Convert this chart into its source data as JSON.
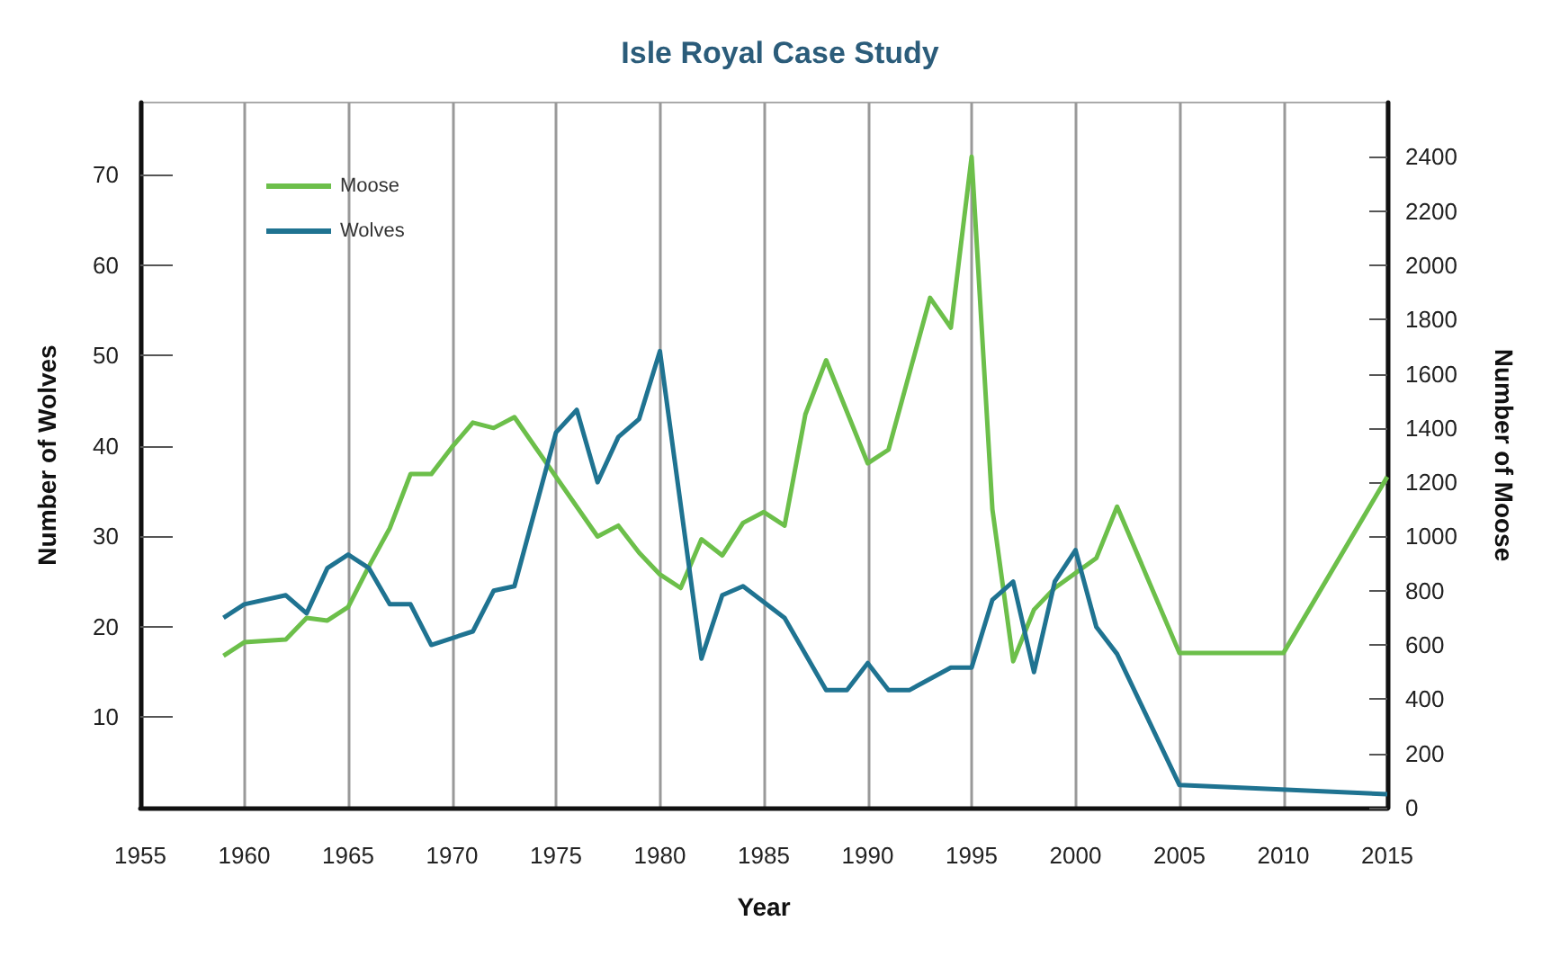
{
  "chart_data": {
    "type": "line",
    "title": "Isle Royal Case Study",
    "xlabel": "Year",
    "ylabel": "Number of Wolves",
    "y2label": "Number of Moose",
    "xlim": [
      1955,
      2015
    ],
    "xticks": [
      1955,
      1960,
      1965,
      1970,
      1975,
      1980,
      1985,
      1990,
      1995,
      2000,
      2005,
      2010,
      2015
    ],
    "ylim": [
      0,
      78
    ],
    "yticks": [
      10,
      20,
      30,
      40,
      50,
      60,
      70
    ],
    "y2lim": [
      0,
      2600
    ],
    "y2ticks": [
      0,
      200,
      400,
      600,
      800,
      1000,
      1200,
      1400,
      1600,
      1800,
      2000,
      2200,
      2400
    ],
    "grid": "x",
    "legend": "top left",
    "marker": "none",
    "line_style": "solid",
    "series": [
      {
        "name": "Moose",
        "color": "#6cbf4a",
        "axis": "y2",
        "x": [
          1959,
          1960,
          1962,
          1963,
          1964,
          1965,
          1966,
          1967,
          1968,
          1969,
          1970,
          1971,
          1972,
          1973,
          1974,
          1977,
          1978,
          1979,
          1980,
          1981,
          1982,
          1983,
          1984,
          1985,
          1986,
          1987,
          1988,
          1990,
          1991,
          1993,
          1994,
          1995,
          1996,
          1997,
          1998,
          1999,
          2001,
          2002,
          2005,
          2010,
          2015
        ],
        "values": [
          560,
          610,
          620,
          700,
          690,
          740,
          890,
          1030,
          1230,
          1230,
          1330,
          1420,
          1400,
          1440,
          1330,
          1000,
          1040,
          940,
          860,
          810,
          990,
          930,
          1050,
          1090,
          1040,
          1450,
          1650,
          1270,
          1320,
          1880,
          1770,
          2400,
          1100,
          540,
          730,
          810,
          920,
          1110,
          570,
          570,
          1220
        ]
      },
      {
        "name": "Wolves",
        "color": "#1f7391",
        "axis": "y",
        "x": [
          1959,
          1960,
          1962,
          1963,
          1964,
          1965,
          1966,
          1967,
          1968,
          1969,
          1971,
          1972,
          1973,
          1975,
          1976,
          1977,
          1978,
          1979,
          1980,
          1982,
          1983,
          1984,
          1986,
          1988,
          1989,
          1990,
          1991,
          1992,
          1994,
          1995,
          1996,
          1997,
          1998,
          1999,
          2000,
          2001,
          2002,
          2005,
          2015
        ],
        "values": [
          21,
          22.5,
          23.5,
          21.5,
          26.5,
          28,
          26.5,
          22.5,
          22.5,
          18,
          19.5,
          24,
          24.5,
          41.5,
          44,
          36,
          41,
          43,
          50.5,
          16.5,
          23.5,
          24.5,
          21,
          13,
          13,
          16,
          13,
          13,
          15.5,
          15.5,
          23,
          25,
          15,
          25,
          28.5,
          20,
          17,
          2.5,
          1.5
        ]
      }
    ]
  }
}
